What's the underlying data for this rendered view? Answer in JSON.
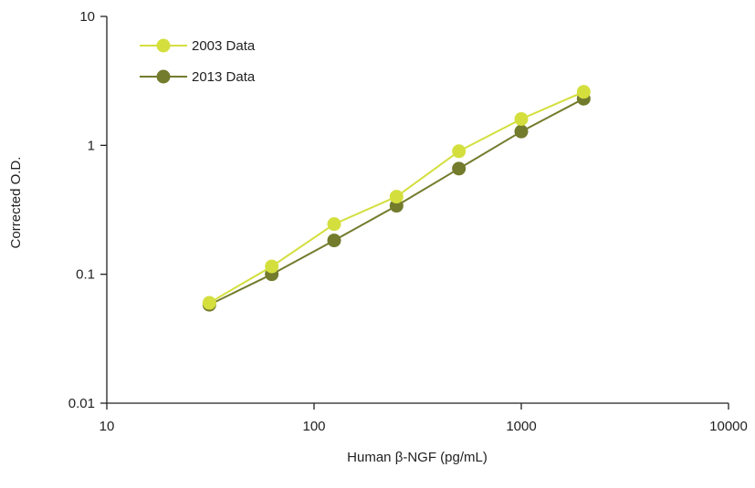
{
  "chart_data": {
    "type": "line",
    "xlabel": "Human β-NGF (pg/mL)",
    "ylabel": "Corrected O.D.",
    "x_scale": "log",
    "y_scale": "log",
    "xlim": [
      10,
      10000
    ],
    "ylim": [
      0.01,
      10
    ],
    "x_ticks": [
      10,
      100,
      1000,
      10000
    ],
    "x_tick_labels": [
      "10",
      "100",
      "1000",
      "10000"
    ],
    "y_ticks": [
      0.01,
      0.1,
      1,
      10
    ],
    "y_tick_labels": [
      "0.01",
      "0.1",
      "1",
      "10"
    ],
    "grid": false,
    "legend_position": "top-left",
    "series": [
      {
        "name": "2003 Data",
        "color": "#d4df3e",
        "x": [
          31.25,
          62.5,
          125,
          250,
          500,
          1000,
          2000
        ],
        "y": [
          0.06,
          0.115,
          0.245,
          0.4,
          0.9,
          1.6,
          2.6
        ]
      },
      {
        "name": "2013 Data",
        "color": "#737b2c",
        "x": [
          31.25,
          62.5,
          125,
          250,
          500,
          1000,
          2000
        ],
        "y": [
          0.058,
          0.1,
          0.183,
          0.34,
          0.66,
          1.28,
          2.3
        ]
      }
    ]
  }
}
